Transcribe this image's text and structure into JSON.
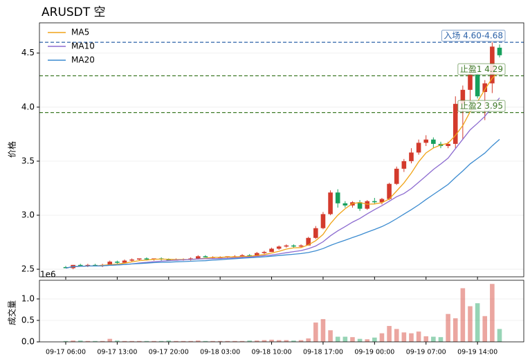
{
  "chart_data": {
    "type": "candlestick",
    "title": "ARUSDT 空",
    "ylabel": "价格",
    "categories": [
      "09-17 06:00",
      null,
      null,
      null,
      null,
      null,
      null,
      "09-17 13:00",
      null,
      null,
      null,
      null,
      null,
      null,
      "09-17 20:00",
      null,
      null,
      null,
      null,
      null,
      null,
      "09-18 03:00",
      null,
      null,
      null,
      null,
      null,
      null,
      "09-18 10:00",
      null,
      null,
      null,
      null,
      null,
      null,
      "09-18 17:00",
      null,
      null,
      null,
      null,
      null,
      null,
      "09-19 00:00",
      null,
      null,
      null,
      null,
      null,
      null,
      "09-19 07:00",
      null,
      null,
      null,
      null,
      null,
      null,
      "09-19 14:00",
      null,
      null,
      null
    ],
    "open": [
      2.52,
      2.51,
      2.54,
      2.53,
      2.54,
      2.53,
      2.54,
      2.57,
      2.56,
      2.58,
      2.59,
      2.6,
      2.59,
      2.6,
      2.59,
      2.58,
      2.59,
      2.59,
      2.6,
      2.62,
      2.61,
      2.61,
      2.61,
      2.62,
      2.62,
      2.63,
      2.62,
      2.65,
      2.66,
      2.69,
      2.71,
      2.72,
      2.71,
      2.72,
      2.79,
      2.88,
      3.01,
      3.21,
      3.11,
      3.09,
      3.12,
      3.06,
      3.13,
      3.12,
      3.15,
      3.29,
      3.43,
      3.5,
      3.58,
      3.67,
      3.7,
      3.66,
      3.64,
      3.66,
      4.03,
      4.16,
      4.3,
      4.14,
      4.22,
      4.55
    ],
    "high": [
      2.53,
      2.54,
      2.55,
      2.55,
      2.55,
      2.55,
      2.58,
      2.58,
      2.59,
      2.6,
      2.6,
      2.61,
      2.6,
      2.61,
      2.6,
      2.6,
      2.6,
      2.61,
      2.63,
      2.63,
      2.62,
      2.62,
      2.62,
      2.63,
      2.64,
      2.64,
      2.66,
      2.67,
      2.7,
      2.72,
      2.73,
      2.73,
      2.73,
      2.8,
      2.9,
      3.03,
      3.23,
      3.24,
      3.13,
      3.13,
      3.14,
      3.14,
      3.16,
      3.16,
      3.3,
      3.45,
      3.52,
      3.62,
      3.7,
      3.74,
      3.72,
      3.68,
      3.68,
      4.1,
      4.2,
      4.4,
      4.32,
      4.25,
      4.6,
      4.58
    ],
    "low": [
      2.51,
      2.5,
      2.53,
      2.52,
      2.53,
      2.52,
      2.54,
      2.55,
      2.56,
      2.57,
      2.58,
      2.58,
      2.58,
      2.58,
      2.58,
      2.58,
      2.58,
      2.58,
      2.59,
      2.61,
      2.6,
      2.6,
      2.6,
      2.61,
      2.61,
      2.62,
      2.62,
      2.64,
      2.66,
      2.68,
      2.7,
      2.7,
      2.7,
      2.72,
      2.78,
      2.87,
      3.0,
      3.07,
      3.07,
      3.07,
      3.04,
      3.05,
      3.1,
      3.1,
      3.14,
      3.28,
      3.4,
      3.48,
      3.56,
      3.64,
      3.62,
      3.62,
      3.62,
      3.62,
      3.7,
      4.05,
      4.08,
      3.88,
      4.13,
      4.46
    ],
    "close": [
      2.51,
      2.54,
      2.53,
      2.54,
      2.53,
      2.54,
      2.57,
      2.56,
      2.58,
      2.59,
      2.6,
      2.59,
      2.6,
      2.59,
      2.58,
      2.59,
      2.59,
      2.6,
      2.62,
      2.61,
      2.61,
      2.61,
      2.62,
      2.62,
      2.63,
      2.62,
      2.65,
      2.66,
      2.69,
      2.71,
      2.72,
      2.71,
      2.72,
      2.79,
      2.88,
      3.01,
      3.21,
      3.11,
      3.09,
      3.12,
      3.06,
      3.13,
      3.12,
      3.15,
      3.29,
      3.43,
      3.5,
      3.58,
      3.67,
      3.7,
      3.66,
      3.64,
      3.66,
      4.03,
      4.16,
      4.3,
      4.1,
      4.22,
      4.56,
      4.48
    ],
    "up_color": "#d33a2c",
    "down_color": "#16a05c",
    "ma": [
      {
        "name": "MA5",
        "color": "#f0a418",
        "values": [
          2.51,
          2.525,
          2.527,
          2.53,
          2.53,
          2.536,
          2.542,
          2.548,
          2.556,
          2.568,
          2.58,
          2.584,
          2.592,
          2.594,
          2.592,
          2.59,
          2.59,
          2.59,
          2.596,
          2.602,
          2.61,
          2.61,
          2.614,
          2.614,
          2.618,
          2.62,
          2.628,
          2.636,
          2.65,
          2.666,
          2.686,
          2.698,
          2.7,
          2.726,
          2.764,
          2.822,
          2.922,
          3.0,
          3.06,
          3.108,
          3.118,
          3.102,
          3.104,
          3.116,
          3.15,
          3.224,
          3.298,
          3.39,
          3.494,
          3.576,
          3.622,
          3.65,
          3.666,
          3.738,
          3.83,
          3.958,
          4.05,
          4.162,
          4.268,
          4.334
        ]
      },
      {
        "name": "MA10",
        "color": "#8c6bd0",
        "values": [
          2.51,
          2.525,
          2.527,
          2.53,
          2.53,
          2.532,
          2.537,
          2.54,
          2.544,
          2.549,
          2.558,
          2.563,
          2.57,
          2.575,
          2.58,
          2.585,
          2.587,
          2.591,
          2.595,
          2.597,
          2.598,
          2.6,
          2.602,
          2.605,
          2.61,
          2.613,
          2.619,
          2.625,
          2.632,
          2.642,
          2.653,
          2.663,
          2.673,
          2.69,
          2.715,
          2.754,
          2.81,
          2.855,
          2.895,
          2.936,
          2.97,
          3.012,
          3.052,
          3.088,
          3.129,
          3.171,
          3.2,
          3.247,
          3.305,
          3.363,
          3.423,
          3.474,
          3.528,
          3.616,
          3.703,
          3.79,
          3.85,
          3.914,
          4.003,
          4.085
        ]
      },
      {
        "name": "MA20",
        "color": "#3b8bd0",
        "values": [
          2.51,
          2.525,
          2.527,
          2.53,
          2.53,
          2.532,
          2.537,
          2.54,
          2.544,
          2.549,
          2.553,
          2.557,
          2.561,
          2.564,
          2.566,
          2.569,
          2.571,
          2.574,
          2.577,
          2.579,
          2.584,
          2.588,
          2.593,
          2.597,
          2.602,
          2.606,
          2.61,
          2.615,
          2.621,
          2.627,
          2.633,
          2.639,
          2.645,
          2.655,
          2.67,
          2.691,
          2.721,
          2.746,
          2.769,
          2.794,
          2.817,
          2.843,
          2.868,
          2.895,
          2.928,
          2.968,
          3.01,
          3.052,
          3.096,
          3.145,
          3.192,
          3.238,
          3.285,
          3.349,
          3.41,
          3.475,
          3.525,
          3.575,
          3.642,
          3.702
        ]
      }
    ],
    "ylim": [
      2.43,
      4.78
    ],
    "yticks": [
      2.5,
      {
        "value": 3,
        "label": "3.0"
      },
      3.5,
      {
        "value": 4,
        "label": "4.0"
      },
      4.5
    ],
    "grid": true,
    "legend": "upper left",
    "hlines": [
      {
        "label": "入场 4.60-4.68",
        "value": 4.6,
        "color": "#2c62a8"
      },
      {
        "label": "止盈1 4.29",
        "value": 4.29,
        "color": "#3f7a28"
      },
      {
        "label": "止盈2 3.95",
        "value": 3.95,
        "color": "#3f7a28"
      }
    ],
    "volume": {
      "ylabel": "成交量",
      "offset_label": "1e6",
      "values": [
        0.02,
        0.03,
        0.03,
        0.02,
        0.02,
        0.02,
        0.07,
        0.03,
        0.02,
        0.02,
        0.02,
        0.02,
        0.02,
        0.02,
        0.03,
        0.02,
        0.02,
        0.02,
        0.03,
        0.02,
        0.02,
        0.02,
        0.02,
        0.02,
        0.02,
        0.03,
        0.03,
        0.04,
        0.05,
        0.04,
        0.04,
        0.03,
        0.04,
        0.08,
        0.45,
        0.53,
        0.27,
        0.12,
        0.12,
        0.11,
        0.07,
        0.06,
        0.1,
        0.2,
        0.37,
        0.3,
        0.22,
        0.2,
        0.24,
        0.13,
        0.12,
        0.11,
        0.65,
        0.55,
        1.25,
        0.83,
        0.9,
        0.6,
        1.35,
        0.3
      ],
      "ylim": [
        0,
        1.435
      ],
      "yticks": [
        {
          "value": 0,
          "label": "0.0"
        },
        0.5,
        {
          "value": 1,
          "label": "1.0"
        }
      ]
    }
  }
}
